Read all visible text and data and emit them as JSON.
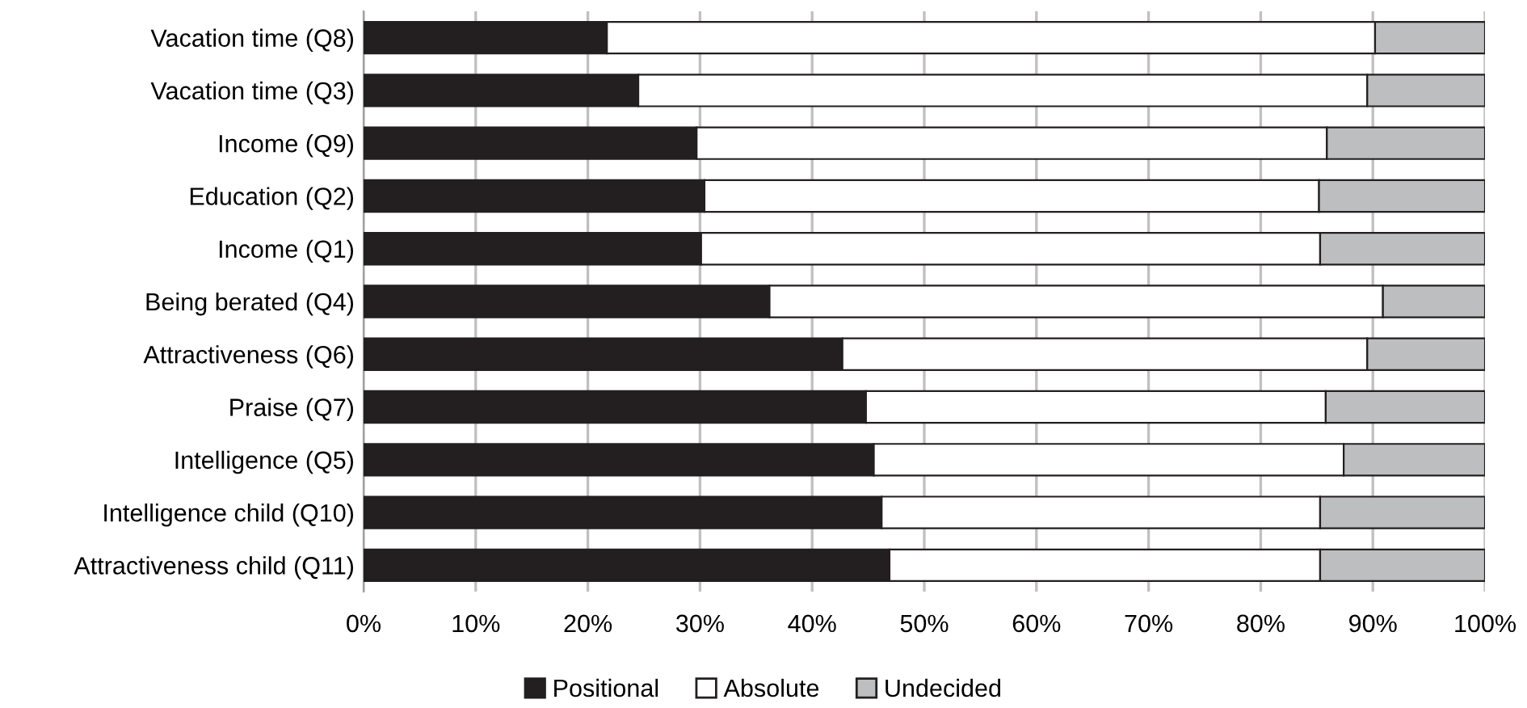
{
  "chart_data": {
    "type": "bar",
    "orientation": "horizontal",
    "stacked": true,
    "categories": [
      "Vacation time (Q8)",
      "Vacation time (Q3)",
      "Income (Q9)",
      "Education (Q2)",
      "Income (Q1)",
      "Being berated (Q4)",
      "Attractiveness (Q6)",
      "Praise (Q7)",
      "Intelligence (Q5)",
      "Intelligence child (Q10)",
      "Attractiveness child (Q11)"
    ],
    "series": [
      {
        "name": "Positional",
        "color": "#231f20",
        "values": [
          21.7,
          24.5,
          29.7,
          30.4,
          30.1,
          36.2,
          42.7,
          44.8,
          45.5,
          46.2,
          46.9
        ]
      },
      {
        "name": "Absolute",
        "color": "#ffffff",
        "values": [
          68.5,
          65.0,
          56.2,
          54.8,
          55.2,
          54.7,
          46.8,
          41.0,
          41.9,
          39.1,
          38.4
        ]
      },
      {
        "name": "Undecided",
        "color": "#bcbec0",
        "values": [
          9.8,
          10.5,
          14.1,
          14.8,
          14.7,
          9.1,
          10.5,
          14.2,
          12.6,
          14.7,
          14.7
        ]
      }
    ],
    "xlim": [
      0,
      100
    ],
    "xticks": [
      {
        "value": 0,
        "label": "0%"
      },
      {
        "value": 10,
        "label": "10%"
      },
      {
        "value": 20,
        "label": "20%"
      },
      {
        "value": 30,
        "label": "30%"
      },
      {
        "value": 40,
        "label": "40%"
      },
      {
        "value": 50,
        "label": "50%"
      },
      {
        "value": 60,
        "label": "60%"
      },
      {
        "value": 70,
        "label": "70%"
      },
      {
        "value": 80,
        "label": "80%"
      },
      {
        "value": 90,
        "label": "90%"
      },
      {
        "value": 100,
        "label": "100%"
      }
    ],
    "grid": "x",
    "legend": "bottom"
  }
}
